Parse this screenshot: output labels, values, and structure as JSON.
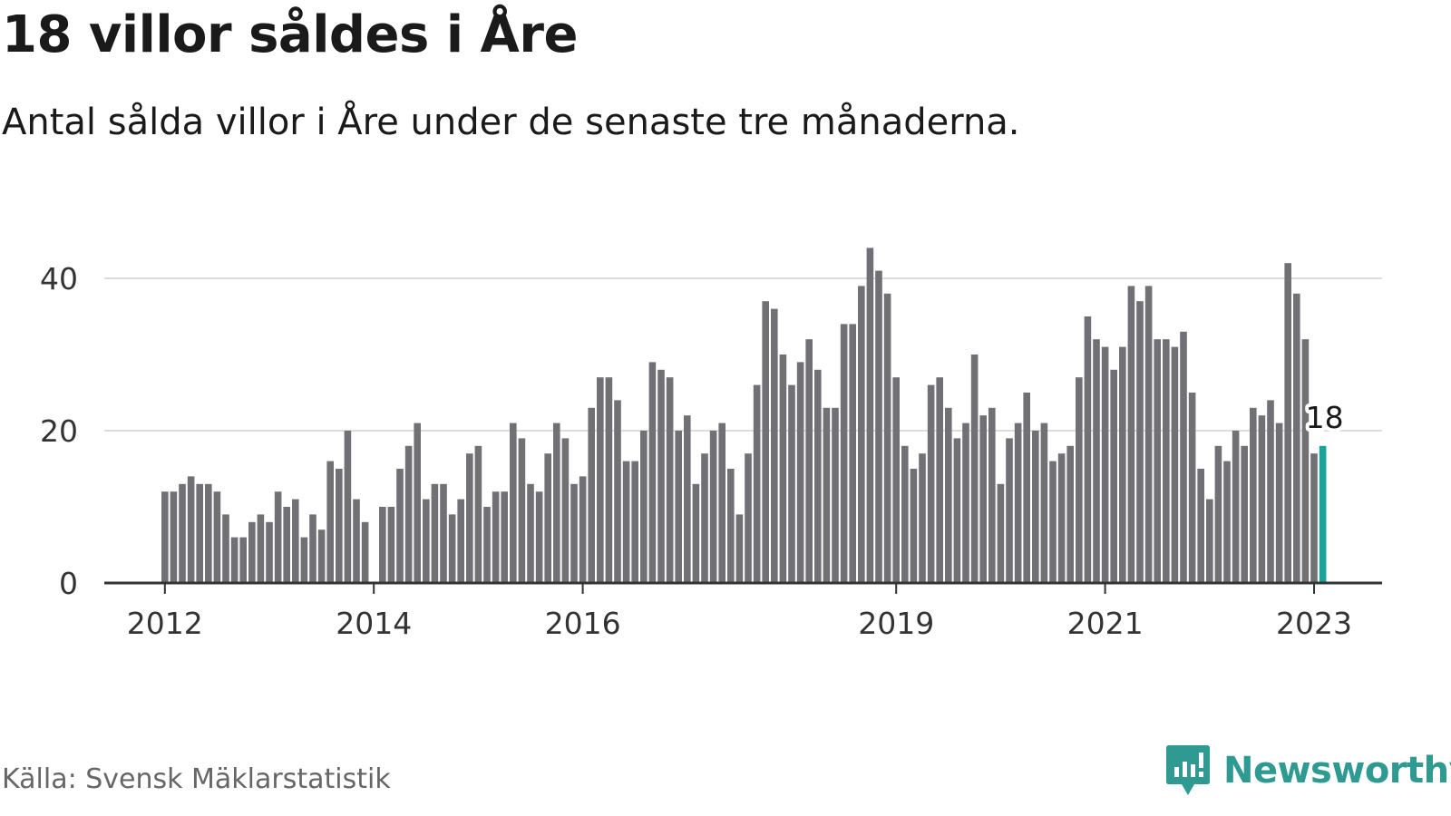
{
  "title": "18 villor såldes i Åre",
  "subtitle": "Antal sålda villor i Åre under de senaste tre månaderna.",
  "source": "Källa: Svensk Mäklarstatistik",
  "brand": {
    "name": "Newsworthy",
    "icon": "newsworthy-logo-icon"
  },
  "colors": {
    "bar": "#707075",
    "highlight": "#1aa39a",
    "grid": "#dcdcdc",
    "axis": "#333333",
    "brand": "#2e9a91"
  },
  "chart_data": {
    "type": "bar",
    "title": "18 villor såldes i Åre",
    "xlabel": "",
    "ylabel": "",
    "ylim": [
      0,
      48
    ],
    "yticks": [
      0,
      20,
      40
    ],
    "grid": true,
    "x_tick_labels": [
      {
        "label": "2012",
        "index": 0
      },
      {
        "label": "2014",
        "index": 24
      },
      {
        "label": "2016",
        "index": 48
      },
      {
        "label": "2019",
        "index": 84
      },
      {
        "label": "2021",
        "index": 108
      },
      {
        "label": "2023",
        "index": 132
      }
    ],
    "start": "2012-01",
    "highlight_index": 133,
    "highlight_label": "18",
    "values": [
      12,
      12,
      13,
      14,
      13,
      13,
      12,
      9,
      6,
      6,
      8,
      9,
      8,
      12,
      10,
      11,
      6,
      9,
      7,
      16,
      15,
      20,
      11,
      8,
      null,
      10,
      10,
      15,
      18,
      21,
      11,
      13,
      13,
      9,
      11,
      17,
      18,
      10,
      12,
      12,
      21,
      19,
      13,
      12,
      17,
      21,
      19,
      13,
      14,
      23,
      27,
      27,
      24,
      16,
      16,
      20,
      29,
      28,
      27,
      20,
      22,
      13,
      17,
      20,
      21,
      15,
      9,
      17,
      26,
      37,
      36,
      30,
      26,
      29,
      32,
      28,
      23,
      23,
      34,
      34,
      39,
      44,
      41,
      38,
      27,
      18,
      15,
      17,
      26,
      27,
      23,
      19,
      21,
      30,
      22,
      23,
      13,
      19,
      21,
      25,
      20,
      21,
      16,
      17,
      18,
      27,
      35,
      32,
      31,
      28,
      31,
      39,
      37,
      39,
      32,
      32,
      31,
      33,
      25,
      15,
      11,
      18,
      16,
      20,
      18,
      23,
      22,
      24,
      21,
      42,
      38,
      32,
      17,
      18
    ]
  }
}
